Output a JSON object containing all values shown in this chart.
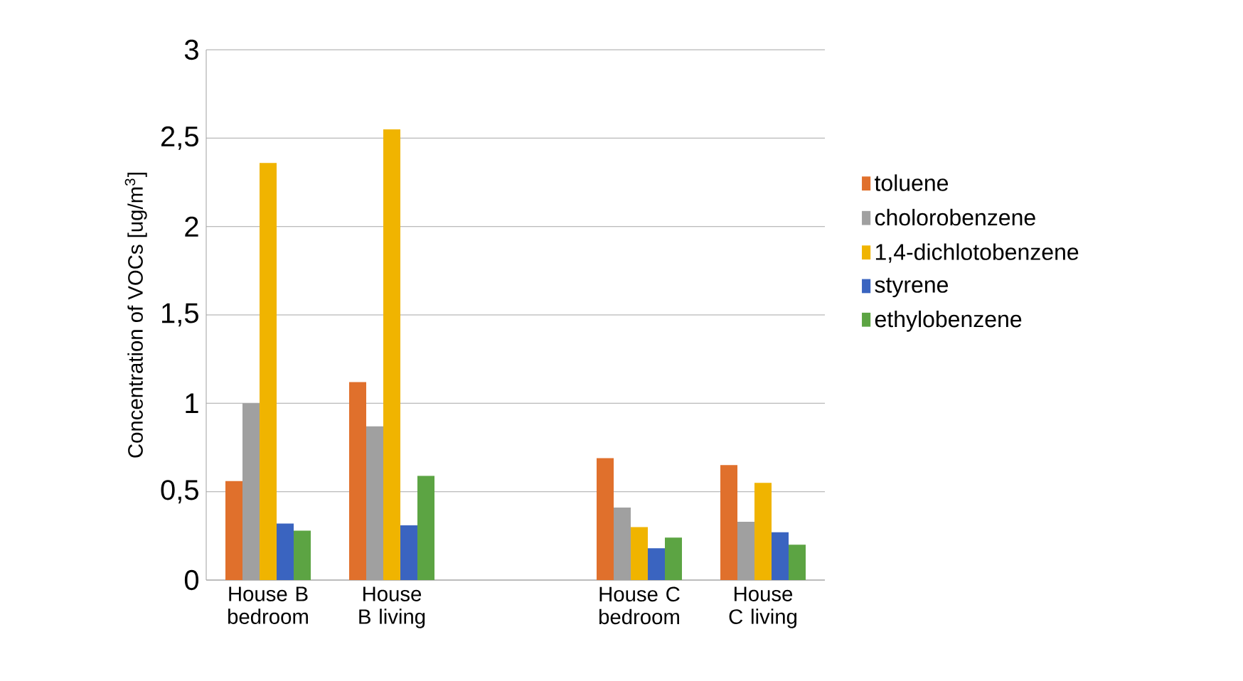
{
  "chart_data": {
    "type": "bar",
    "ylabel": "Concentration of VOCs [ug/m$^{3}$]",
    "categories": [
      "House B bedroom",
      "House B living",
      null,
      "House C bedroom",
      "House C living"
    ],
    "series": [
      {
        "name": "toluene",
        "color": "#e0702c",
        "values": [
          0.56,
          1.12,
          null,
          0.69,
          0.65
        ]
      },
      {
        "name": "cholorobenzene",
        "color": "#a0a0a0",
        "values": [
          1.0,
          0.87,
          null,
          0.41,
          0.33
        ]
      },
      {
        "name": "1,4-dichlotobenzene",
        "color": "#f0b400",
        "values": [
          2.36,
          2.55,
          null,
          0.3,
          0.55
        ]
      },
      {
        "name": "styrene",
        "color": "#3a64c0",
        "values": [
          0.32,
          0.31,
          null,
          0.18,
          0.27
        ]
      },
      {
        "name": "ethylobenzene",
        "color": "#5ca443",
        "values": [
          0.28,
          0.59,
          null,
          0.24,
          0.2
        ]
      }
    ],
    "ylim": [
      0,
      3
    ],
    "yticks": [
      0,
      {
        "value": 0.5,
        "label": "0,5"
      },
      1,
      {
        "value": 1.5,
        "label": "1,5"
      },
      2,
      {
        "value": 2.5,
        "label": "2,5"
      },
      3
    ],
    "grid": "y",
    "legend": "right"
  }
}
